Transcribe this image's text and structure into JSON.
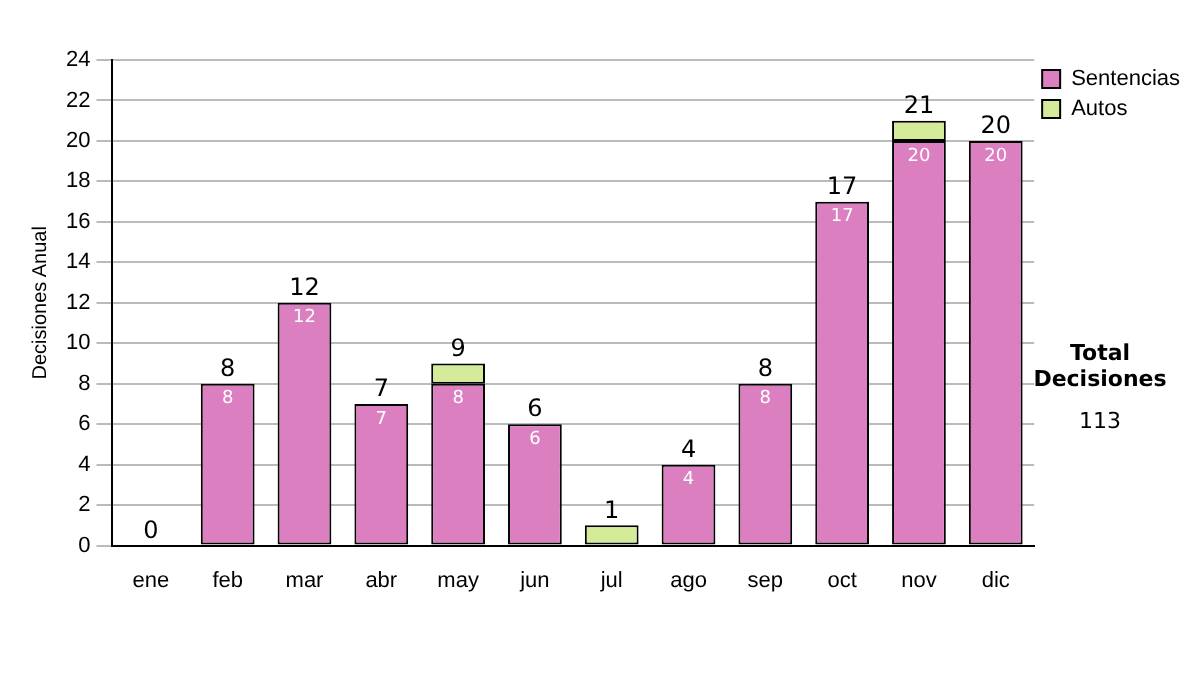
{
  "chart_data": {
    "type": "bar",
    "stacked": true,
    "ylabel": "Decisiones Anual",
    "categories": [
      "ene",
      "feb",
      "mar",
      "abr",
      "may",
      "jun",
      "jul",
      "ago",
      "sep",
      "oct",
      "nov",
      "dic"
    ],
    "series": [
      {
        "name": "Sentencias",
        "color": "#dc7fc0",
        "values": [
          0,
          8,
          12,
          7,
          8,
          6,
          0,
          4,
          8,
          17,
          20,
          20
        ],
        "value_labels": [
          null,
          "8",
          "12",
          "7",
          "8",
          "6",
          null,
          "4",
          "8",
          "17",
          "20",
          "20"
        ]
      },
      {
        "name": "Autos",
        "color": "#d4ec9a",
        "values": [
          0,
          0,
          0,
          0,
          1,
          0,
          1,
          0,
          0,
          0,
          1,
          0
        ]
      }
    ],
    "totals": [
      "0",
      "8",
      "12",
      "7",
      "9",
      "6",
      "1",
      "4",
      "8",
      "17",
      "21",
      "20"
    ],
    "ylim": [
      0,
      24
    ],
    "yticks": [
      0,
      2,
      4,
      6,
      8,
      10,
      12,
      14,
      16,
      18,
      20,
      22,
      24
    ],
    "grid": "y",
    "legend": "right",
    "annotations": [
      "Total Decisiones",
      "113"
    ]
  }
}
